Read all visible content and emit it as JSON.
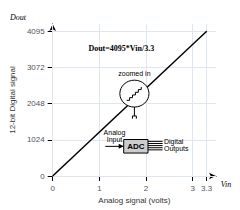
{
  "chart_data": {
    "type": "line",
    "xlabel": "Analog signal (volts)",
    "ylabel": "12-bit Digital signal",
    "x": [
      0,
      3.3
    ],
    "values": [
      0,
      4095
    ],
    "color": "#000000",
    "xlim": [
      0,
      3.5
    ],
    "ylim": [
      0,
      4300
    ],
    "xticks": [
      0,
      1,
      2,
      3,
      3.3
    ],
    "yticks": [
      0,
      1024,
      2048,
      3072,
      4095
    ],
    "grid": true,
    "annotations": [
      "Vin",
      "Dout",
      "Dout=4095*Vin/3.3",
      "zoomed in",
      "ADC",
      "Analog\nInput",
      "Digital\nOutputs"
    ]
  }
}
